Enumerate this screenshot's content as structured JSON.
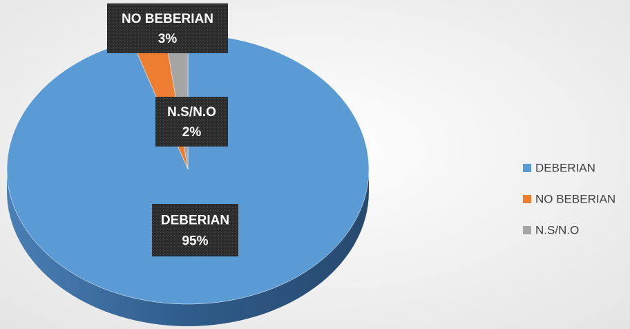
{
  "chart_data": {
    "type": "pie",
    "categories": [
      "DEBERIAN",
      "NO BEBERIAN",
      "N.S/N.O"
    ],
    "values": [
      95,
      3,
      2
    ],
    "value_labels": [
      "95%",
      "3%",
      "2%"
    ],
    "colors": [
      "#5b9bd5",
      "#ed7d31",
      "#a5a5a5"
    ],
    "legend": "right"
  }
}
